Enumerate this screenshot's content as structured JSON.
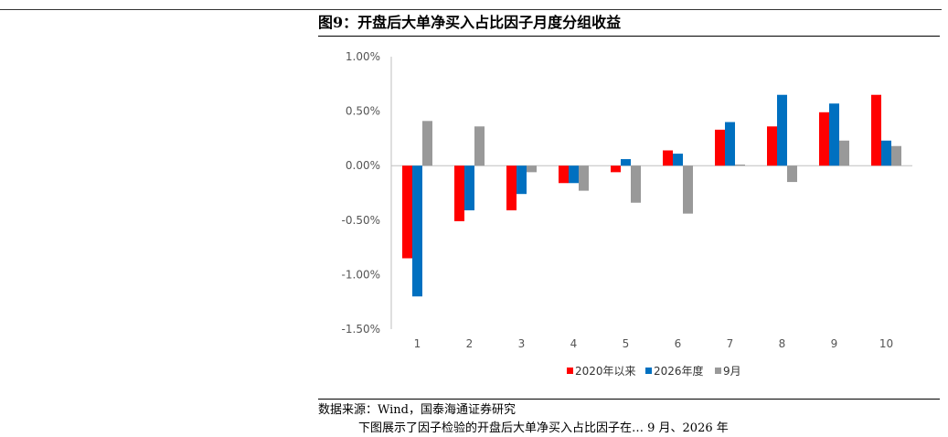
{
  "figure": {
    "title": "图9：开盘后大单净买入占比因子月度分组收益",
    "source": "数据来源：Wind，国泰海通证券研究",
    "next_line": "下图展示了因子检验的开盘后大单净买入占比因子在… 9 月、2026 年"
  },
  "chart_data": {
    "type": "bar",
    "title": "",
    "xlabel": "",
    "ylabel": "",
    "categories": [
      "1",
      "2",
      "3",
      "4",
      "5",
      "6",
      "7",
      "8",
      "9",
      "10"
    ],
    "ylim": [
      -0.015,
      0.01
    ],
    "yticks": [
      0.01,
      0.005,
      0.0,
      -0.005,
      -0.01,
      -0.015
    ],
    "ytick_labels": [
      "1.00%",
      "0.50%",
      "0.00%",
      "-0.50%",
      "-1.00%",
      "-1.50%"
    ],
    "grid": false,
    "legend": "bottom",
    "series": [
      {
        "name": "2020年以来",
        "color": "#ff0000",
        "values": [
          -0.0085,
          -0.0051,
          -0.0041,
          -0.0016,
          -0.0006,
          0.0014,
          0.0033,
          0.0036,
          0.0049,
          0.0065
        ]
      },
      {
        "name": "2026年度",
        "color": "#0070c0",
        "values": [
          -0.012,
          -0.0041,
          -0.0026,
          -0.0016,
          0.0006,
          0.0011,
          0.004,
          0.0065,
          0.0057,
          0.0023
        ]
      },
      {
        "name": "9月",
        "color": "#999999",
        "values": [
          0.0041,
          0.0036,
          -0.0006,
          -0.0023,
          -0.0034,
          -0.0044,
          0.0001,
          -0.0015,
          0.0023,
          0.0018
        ]
      }
    ]
  }
}
